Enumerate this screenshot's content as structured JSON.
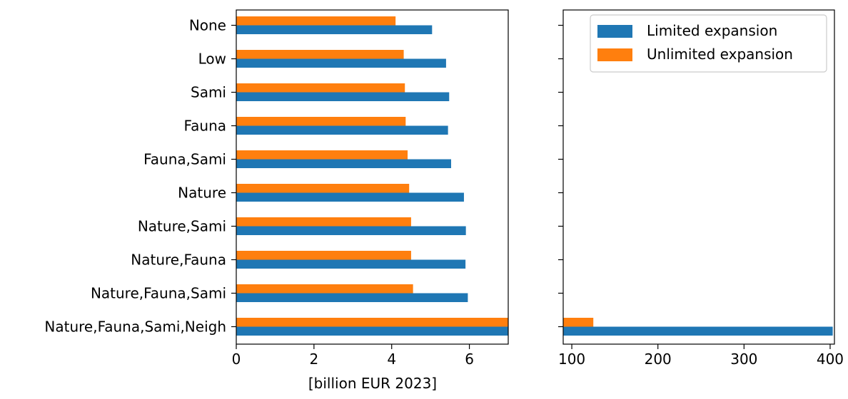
{
  "chart_data": {
    "type": "bar",
    "orientation": "horizontal",
    "broken_x_axis": true,
    "xlabel": "[billion EUR 2023]",
    "categories": [
      "None",
      "Low",
      "Sami",
      "Fauna",
      "Fauna,Sami",
      "Nature",
      "Nature,Sami",
      "Nature,Fauna",
      "Nature,Fauna,Sami",
      "Nature,Fauna,Sami,Neigh"
    ],
    "series": [
      {
        "name": "Limited expansion",
        "color": "#1f77b4",
        "values": [
          5.04,
          5.4,
          5.48,
          5.45,
          5.53,
          5.86,
          5.91,
          5.9,
          5.96,
          403
        ]
      },
      {
        "name": "Unlimited expansion",
        "color": "#ff7f0e",
        "values": [
          4.1,
          4.31,
          4.34,
          4.36,
          4.41,
          4.45,
          4.5,
          4.5,
          4.55,
          125
        ]
      }
    ],
    "panels": [
      {
        "xlim": [
          0,
          7
        ],
        "ticks": [
          0,
          2,
          4,
          6
        ],
        "show_category_labels": true
      },
      {
        "xlim": [
          90,
          405
        ],
        "ticks": [
          100,
          200,
          300,
          400
        ],
        "show_category_labels": false
      }
    ],
    "legend": {
      "placement": "upper-right of right panel",
      "entries": [
        "Limited expansion",
        "Unlimited expansion"
      ]
    },
    "grid": false
  }
}
